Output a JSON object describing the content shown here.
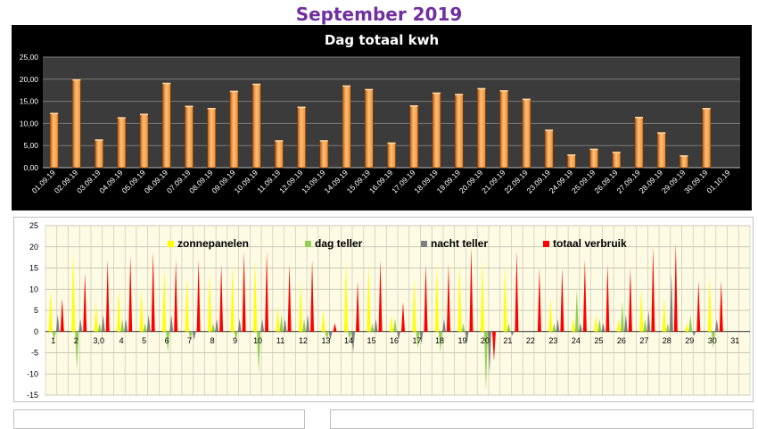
{
  "page": {
    "title": "September 2019"
  },
  "chart_data": [
    {
      "type": "bar",
      "title": "Dag totaal kwh",
      "categories": [
        "01.09.19",
        "02.09.19",
        "03.09.19",
        "04.09.19",
        "05.09.19",
        "06.09.19",
        "07.09.19",
        "08.09.19",
        "09.09.19",
        "10.09.19",
        "11.09.19",
        "12.09.19",
        "13.09.19",
        "14.09.19",
        "15.09.19",
        "16.09.19",
        "17.09.19",
        "18.09.19",
        "19.09.19",
        "20.09.19",
        "21.09.19",
        "22.09.19",
        "23.09.19",
        "24.09.19",
        "25.09.19",
        "26.09.19",
        "27.09.19",
        "28.09.19",
        "29.09.19",
        "30.09.19",
        "01.10.19"
      ],
      "values": [
        12.4,
        20.0,
        6.4,
        11.4,
        12.2,
        19.2,
        14.0,
        13.5,
        17.4,
        19.0,
        6.2,
        13.8,
        6.2,
        18.6,
        17.8,
        5.7,
        14.1,
        17.0,
        16.7,
        18.0,
        17.5,
        15.6,
        8.6,
        3.0,
        4.3,
        3.6,
        11.5,
        8.0,
        2.8,
        13.5,
        0
      ],
      "yticks": [
        "25,00",
        "20,00",
        "15,00",
        "10,00",
        "5,00",
        "0,00"
      ],
      "ylim": [
        0,
        25
      ],
      "grid": true,
      "colors": {
        "background": "#000000",
        "plot": "#3b3b3b",
        "bar": "#f0892a",
        "bar_light": "#ffc27a",
        "bar_dark": "#c05a10"
      }
    },
    {
      "type": "area",
      "categories": [
        "1",
        "2",
        "3,0",
        "4",
        "5",
        "6",
        "7",
        "8",
        "9",
        "10",
        "11",
        "12",
        "13",
        "14",
        "15",
        "16",
        "17",
        "18",
        "19",
        "20",
        "21",
        "22",
        "23",
        "24",
        "25",
        "26",
        "27",
        "28",
        "29",
        "30",
        "31"
      ],
      "yticks": [
        "25",
        "20",
        "15",
        "10",
        "5",
        "0",
        "-5",
        "-10",
        "-15"
      ],
      "ylim": [
        -15,
        25
      ],
      "grid": true,
      "legend_placement": "top",
      "series": [
        {
          "name": "zonnepanelen",
          "color": "#ffff00",
          "values": [
            10,
            19,
            7,
            10,
            10,
            15,
            13,
            14,
            16,
            17,
            6,
            12,
            5,
            17,
            16,
            4,
            13,
            16,
            16,
            17,
            16,
            0,
            8,
            3,
            4,
            3,
            10,
            8,
            2,
            13,
            0
          ]
        },
        {
          "name": "dag teller",
          "color": "#92d050",
          "values": [
            -2,
            -9,
            2,
            3,
            2,
            -5,
            -2,
            2,
            -2,
            -10,
            4,
            3,
            -2,
            -2,
            2,
            3,
            -4,
            -5,
            2,
            -14,
            2,
            0,
            2,
            10,
            3,
            7,
            3,
            2,
            4,
            -4,
            0
          ]
        },
        {
          "name": "nacht teller",
          "color": "#808080",
          "values": [
            4,
            3,
            4,
            3,
            4,
            4,
            -2,
            3,
            3,
            3,
            3,
            4,
            -2,
            -5,
            3,
            -2,
            -3,
            3,
            -3,
            -10,
            -1,
            0,
            3,
            2,
            2,
            4,
            5,
            14,
            -1,
            3,
            0
          ]
        },
        {
          "name": "totaal verbruik",
          "color": "#ff0000",
          "values": [
            8,
            14,
            17,
            18,
            19,
            17,
            17,
            16,
            19,
            19,
            16,
            17,
            2,
            12,
            17,
            7,
            16,
            16,
            20,
            -7,
            19,
            15,
            15,
            17,
            16,
            15,
            20,
            21,
            12,
            12,
            0
          ]
        }
      ]
    }
  ]
}
